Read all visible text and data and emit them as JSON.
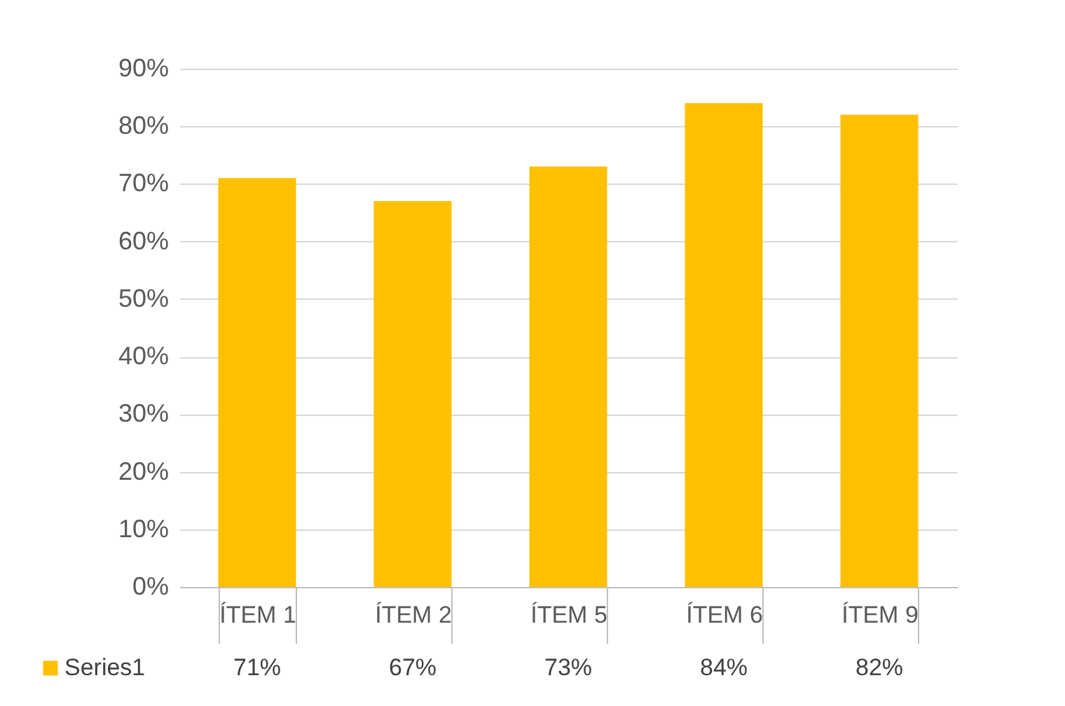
{
  "chart_data": {
    "type": "bar",
    "categories": [
      "ÍTEM 1",
      "ÍTEM 2",
      "ÍTEM 5",
      "ÍTEM 6",
      "ÍTEM 9"
    ],
    "series": [
      {
        "name": "Series1",
        "color": "#ffc000",
        "values": [
          71,
          67,
          73,
          84,
          82
        ]
      }
    ],
    "ylim": [
      0,
      90
    ],
    "yticks": [
      {
        "value": 0,
        "label": "0%"
      },
      {
        "value": 10,
        "label": "10%"
      },
      {
        "value": 20,
        "label": "20%"
      },
      {
        "value": 30,
        "label": "30%"
      },
      {
        "value": 40,
        "label": "40%"
      },
      {
        "value": 50,
        "label": "50%"
      },
      {
        "value": 60,
        "label": "60%"
      },
      {
        "value": 70,
        "label": "70%"
      },
      {
        "value": 80,
        "label": "80%"
      },
      {
        "value": 90,
        "label": "90%"
      }
    ],
    "value_labels": [
      "71%",
      "67%",
      "73%",
      "84%",
      "82%"
    ],
    "grid": "y",
    "legend": "bottom left"
  }
}
